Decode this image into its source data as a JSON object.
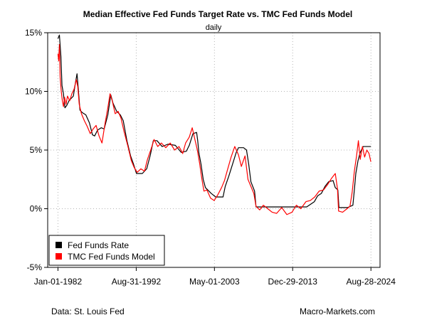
{
  "chart_data": {
    "type": "line",
    "title": "Median Effective Fed Funds Target Rate vs. TMC Fed Funds Model",
    "subtitle": "daily",
    "xlabel": "",
    "ylabel": "",
    "ylim": [
      -5,
      15
    ],
    "y_ticks": [
      -5,
      0,
      5,
      10,
      15
    ],
    "y_tick_labels": [
      "-5%",
      "0%",
      "5%",
      "10%",
      "15%"
    ],
    "x_range": [
      1982.0,
      2024.65
    ],
    "x_ticks": [
      1982.0,
      1992.67,
      2003.33,
      2013.99,
      2024.66
    ],
    "x_tick_labels": [
      "Jan-01-1982",
      "Aug-31-1992",
      "May-01-2003",
      "Dec-29-2013",
      "Aug-28-2024"
    ],
    "grid": true,
    "legend": "bottom-left",
    "series": [
      {
        "name": "Fed Funds Rate",
        "color": "#000000",
        "x": [
          1982.0,
          1982.2,
          1982.4,
          1982.55,
          1982.75,
          1982.95,
          1983.2,
          1983.5,
          1983.8,
          1984.1,
          1984.4,
          1984.6,
          1984.8,
          1985.0,
          1985.3,
          1985.8,
          1986.3,
          1986.7,
          1987.0,
          1987.4,
          1987.9,
          1988.3,
          1988.8,
          1989.2,
          1989.5,
          1990.0,
          1990.5,
          1990.9,
          1991.4,
          1991.9,
          1992.3,
          1992.7,
          1993.5,
          1994.1,
          1994.6,
          1995.0,
          1995.5,
          1996.2,
          1997.0,
          1998.0,
          1998.8,
          1999.5,
          1999.9,
          2000.4,
          2000.9,
          2001.05,
          2001.2,
          2001.5,
          2001.8,
          2002.1,
          2002.9,
          2003.5,
          2004.5,
          2004.8,
          2005.3,
          2005.8,
          2006.3,
          2006.6,
          2007.3,
          2007.7,
          2008.0,
          2008.3,
          2008.8,
          2009.0,
          2012.0,
          2015.9,
          2016.95,
          2017.4,
          2017.9,
          2018.4,
          2018.9,
          2019.5,
          2019.8,
          2020.15,
          2020.3,
          2021.5,
          2022.2,
          2022.4,
          2022.6,
          2022.9,
          2023.2,
          2023.6,
          2024.65
        ],
        "values": [
          14.5,
          14.8,
          13.0,
          10.5,
          9.8,
          8.6,
          8.8,
          9.2,
          9.4,
          9.6,
          10.8,
          11.5,
          10.0,
          8.4,
          8.2,
          8.0,
          7.3,
          6.3,
          6.2,
          6.7,
          6.9,
          6.8,
          8.0,
          9.7,
          9.0,
          8.3,
          8.0,
          7.5,
          5.8,
          4.5,
          3.8,
          3.0,
          3.0,
          3.4,
          4.6,
          5.8,
          5.8,
          5.3,
          5.5,
          5.4,
          4.8,
          4.9,
          5.4,
          6.4,
          6.5,
          5.8,
          4.8,
          3.8,
          2.5,
          1.8,
          1.3,
          1.0,
          1.0,
          1.9,
          2.8,
          3.8,
          4.8,
          5.2,
          5.2,
          5.0,
          3.8,
          2.3,
          1.5,
          0.15,
          0.15,
          0.15,
          0.6,
          1.1,
          1.3,
          1.9,
          2.3,
          2.4,
          1.8,
          1.6,
          0.1,
          0.1,
          0.3,
          1.6,
          3.0,
          4.1,
          4.8,
          5.3,
          5.3
        ]
      },
      {
        "name": "TMC Fed Funds Model",
        "color": "#ff0000",
        "x": [
          1982.0,
          1982.1,
          1982.2,
          1982.3,
          1982.45,
          1982.6,
          1982.75,
          1982.9,
          1983.1,
          1983.3,
          1983.6,
          1983.9,
          1984.2,
          1984.5,
          1984.7,
          1984.9,
          1985.2,
          1985.6,
          1986.0,
          1986.4,
          1986.8,
          1987.2,
          1987.6,
          1988.0,
          1988.4,
          1988.8,
          1989.1,
          1989.4,
          1989.8,
          1990.2,
          1990.6,
          1991.0,
          1991.5,
          1992.0,
          1992.4,
          1992.8,
          1993.3,
          1993.8,
          1994.2,
          1994.7,
          1995.1,
          1995.6,
          1996.1,
          1996.7,
          1997.3,
          1997.9,
          1998.5,
          1999.0,
          1999.4,
          1999.9,
          2000.3,
          2000.7,
          2001.0,
          2001.3,
          2001.6,
          2001.9,
          2002.3,
          2002.8,
          2003.3,
          2003.8,
          2004.3,
          2004.7,
          2005.1,
          2005.6,
          2006.1,
          2006.6,
          2007.0,
          2007.5,
          2007.9,
          2008.3,
          2008.7,
          2009.0,
          2009.5,
          2010.0,
          2010.6,
          2011.2,
          2011.8,
          2012.5,
          2013.2,
          2013.9,
          2014.5,
          2015.1,
          2015.8,
          2016.4,
          2017.0,
          2017.6,
          2018.2,
          2018.8,
          2019.3,
          2019.8,
          2020.1,
          2020.25,
          2020.8,
          2021.4,
          2021.8,
          2022.1,
          2022.4,
          2022.7,
          2022.95,
          2023.2,
          2023.5,
          2023.8,
          2024.1,
          2024.4,
          2024.65
        ],
        "values": [
          13.2,
          12.6,
          14.0,
          11.2,
          10.0,
          9.2,
          8.7,
          9.5,
          8.9,
          9.6,
          9.2,
          9.8,
          10.2,
          11.0,
          10.4,
          8.9,
          8.1,
          7.5,
          7.0,
          6.4,
          6.8,
          7.1,
          6.2,
          5.6,
          7.2,
          8.6,
          9.8,
          9.2,
          8.1,
          8.3,
          7.7,
          6.6,
          5.4,
          4.1,
          3.5,
          3.1,
          3.4,
          3.2,
          4.2,
          5.1,
          5.9,
          5.3,
          5.6,
          5.2,
          5.6,
          5.0,
          5.3,
          4.7,
          5.6,
          6.1,
          6.9,
          5.8,
          5.0,
          3.9,
          2.6,
          1.5,
          1.6,
          0.9,
          0.7,
          1.2,
          1.8,
          2.4,
          3.3,
          4.4,
          5.3,
          4.6,
          3.6,
          4.5,
          2.5,
          1.9,
          1.3,
          0.2,
          -0.1,
          0.3,
          0.0,
          -0.3,
          -0.4,
          0.1,
          -0.5,
          -0.3,
          0.3,
          0.0,
          0.6,
          0.7,
          1.0,
          1.5,
          1.6,
          2.1,
          2.6,
          3.0,
          1.7,
          -0.2,
          -0.3,
          0.0,
          0.2,
          1.4,
          3.2,
          4.5,
          5.8,
          4.2,
          5.3,
          4.4,
          5.0,
          4.7,
          4.0
        ]
      }
    ]
  },
  "footer": {
    "source": "Data: St. Louis Fed",
    "brand": "Macro-Markets.com"
  }
}
